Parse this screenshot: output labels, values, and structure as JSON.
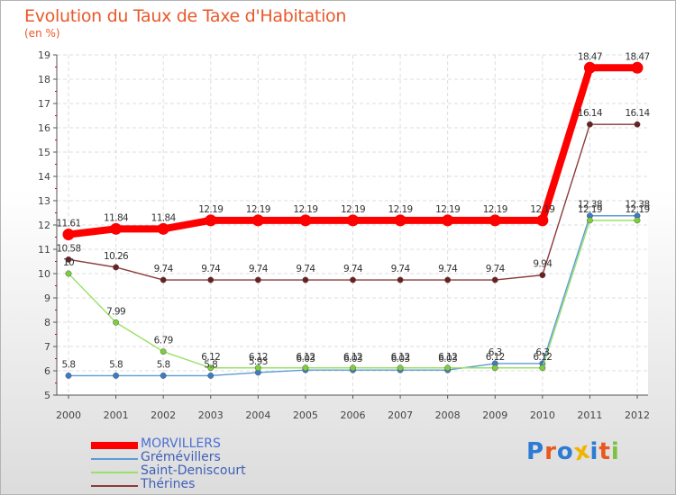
{
  "title": "Evolution du Taux de Taxe d'Habitation",
  "unit_label": "(en %)",
  "logo_text": "Proxiti",
  "logo_colors": [
    "#2c7bd4",
    "#e8591e",
    "#2c7bd4",
    "#f0b400",
    "#2c7bd4",
    "#e8591e",
    "#7cc142"
  ],
  "chart_data": {
    "type": "line",
    "x": [
      "2000",
      "2001",
      "2002",
      "2003",
      "2004",
      "2005",
      "2006",
      "2007",
      "2008",
      "2009",
      "2010",
      "2011",
      "2012"
    ],
    "ylim": [
      5,
      19
    ],
    "yticks": [
      "5",
      "6",
      "7",
      "8",
      "9",
      "10",
      "11",
      "12",
      "13",
      "14",
      "15",
      "16",
      "17",
      "18",
      "19"
    ],
    "grid": true,
    "legend_position": "bottom-left",
    "series": [
      {
        "name": "MORVILLERS",
        "color": "#ff0000",
        "values": [
          11.61,
          11.84,
          11.84,
          12.19,
          12.19,
          12.19,
          12.19,
          12.19,
          12.19,
          12.19,
          12.19,
          18.47,
          18.47
        ],
        "labels": [
          "11.61",
          "11.84",
          "11.84",
          "12.19",
          "12.19",
          "12.19",
          "12.19",
          "12.19",
          "12.19",
          "12.19",
          "12.19",
          "18.47",
          "18.47"
        ]
      },
      {
        "name": "Grémévillers",
        "color": "#5b9bd5",
        "marker_color": "#3b7cc4",
        "values": [
          5.8,
          5.8,
          5.8,
          5.8,
          5.93,
          6.03,
          6.03,
          6.03,
          6.03,
          6.3,
          6.3,
          12.38,
          12.38
        ],
        "labels": [
          "5.8",
          "5.8",
          "5.8",
          "5.8",
          "5.93",
          "6.03",
          "6.03",
          "6.03",
          "6.03",
          "6.3",
          "6.3",
          "12.38",
          "12.38"
        ]
      },
      {
        "name": "Saint-Deniscourt",
        "color": "#99e066",
        "marker_color": "#7ccf3a",
        "values": [
          10,
          7.99,
          6.79,
          6.12,
          6.12,
          6.12,
          6.12,
          6.12,
          6.12,
          6.12,
          6.12,
          12.19,
          12.19
        ],
        "labels": [
          "10",
          "7.99",
          "6.79",
          "6.12",
          "6.12",
          "6.12",
          "6.12",
          "6.12",
          "6.12",
          "6.12",
          "6.12",
          "12.19",
          "12.19"
        ]
      },
      {
        "name": "Thérines",
        "color": "#8b3a3a",
        "marker_color": "#6b2020",
        "values": [
          10.58,
          10.26,
          9.74,
          9.74,
          9.74,
          9.74,
          9.74,
          9.74,
          9.74,
          9.74,
          9.94,
          16.14,
          16.14
        ],
        "labels": [
          "10.58",
          "10.26",
          "9.74",
          "9.74",
          "9.74",
          "9.74",
          "9.74",
          "9.74",
          "9.74",
          "9.74",
          "9.94",
          "16.14",
          "16.14"
        ]
      }
    ]
  }
}
